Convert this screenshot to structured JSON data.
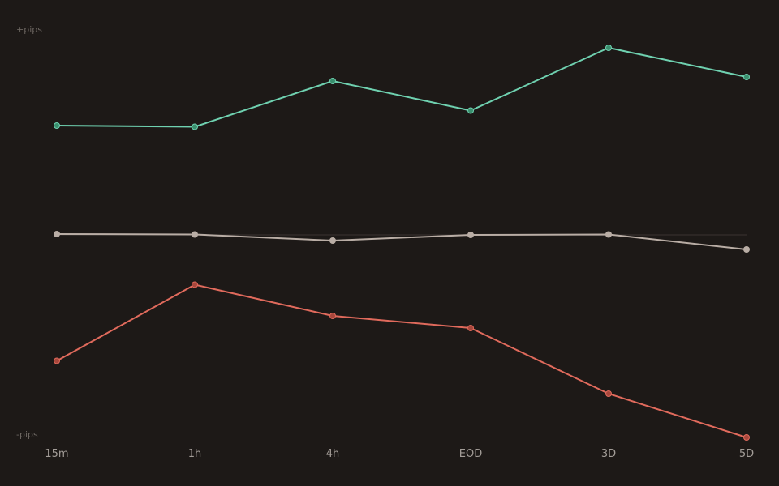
{
  "chart_data": {
    "type": "line",
    "categories": [
      "15m",
      "1h",
      "4h",
      "EOD",
      "3D",
      "5D"
    ],
    "y_top_label": "+pips",
    "y_bottom_label": "-pips",
    "ylim": [
      -100,
      100
    ],
    "grid": false,
    "zero_line": true,
    "series": [
      {
        "values": [
          54,
          53.4,
          76,
          61.4,
          92.4,
          78
        ],
        "color": "#6fd1b0",
        "marker_color": "#3a8f6e"
      },
      {
        "values": [
          0.4,
          0.2,
          -2.8,
          0,
          0.2,
          -7.2
        ],
        "color": "#b9ada5",
        "marker_color": "#b9ada5"
      },
      {
        "values": [
          -62.2,
          -24.6,
          -40,
          -46,
          -78.4,
          -100
        ],
        "color": "#e06a5c",
        "marker_color": "#a8473c"
      }
    ]
  },
  "colors": {
    "background": "#1d1917",
    "axis_text": "#6b6560",
    "tick_text": "#a39d98",
    "zero_line": "#3a3431"
  }
}
